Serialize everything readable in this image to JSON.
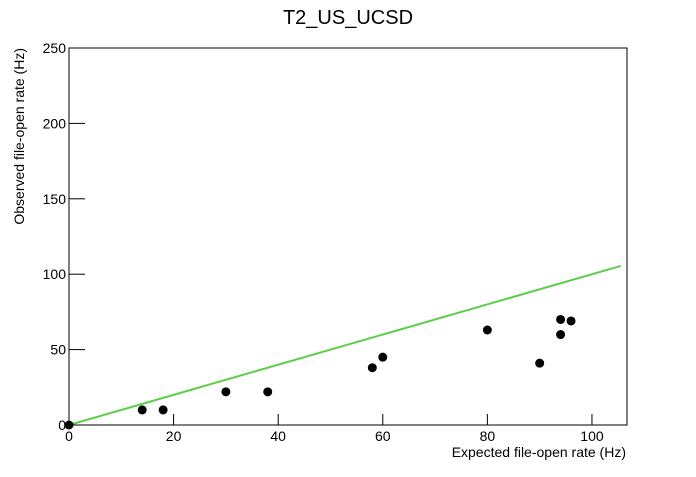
{
  "chart_data": {
    "type": "scatter",
    "title": "T2_US_UCSD",
    "x_label": "Expected file-open rate (Hz)",
    "y_label": "Observed file-open rate (Hz)",
    "x": [
      0,
      14,
      18,
      30,
      38,
      58,
      60,
      80,
      90,
      94,
      94,
      96
    ],
    "values": [
      0,
      10,
      10,
      22,
      22,
      38,
      45,
      63,
      41,
      70,
      60,
      69
    ],
    "color": "#000000",
    "series": [
      {
        "color": "#5ccd4a",
        "x": [
          0,
          105.5
        ],
        "values": [
          0,
          105.5
        ]
      }
    ],
    "xlim": [
      0,
      106.7
    ],
    "ylim": [
      0,
      250
    ],
    "xticks": [
      0,
      20,
      40,
      60,
      80,
      100
    ],
    "yticks": [
      0,
      50,
      100,
      150,
      200,
      250
    ]
  }
}
